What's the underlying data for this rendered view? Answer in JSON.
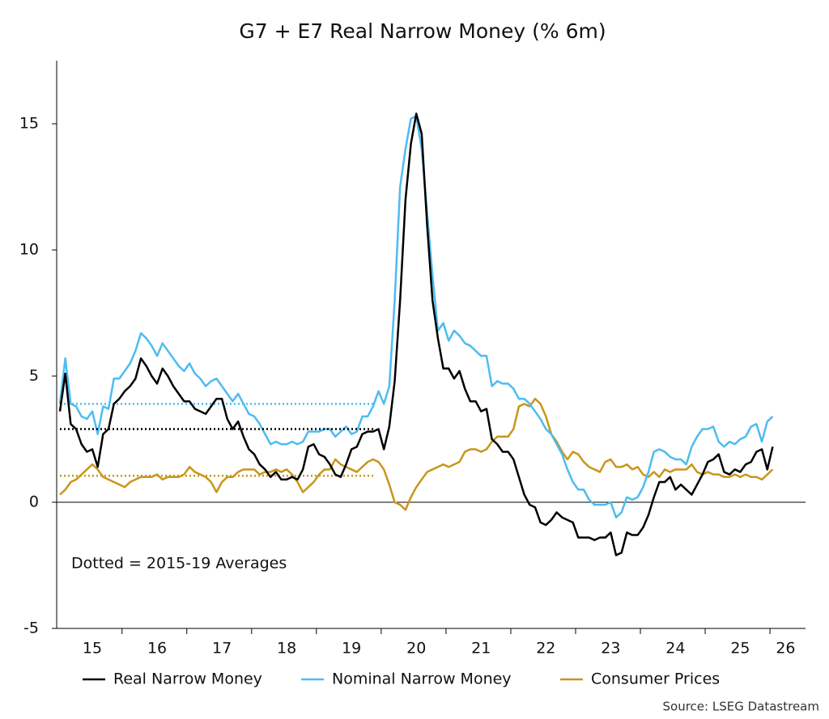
{
  "chart_data": {
    "type": "line",
    "title": "G7 + E7 Real Narrow Money (% 6m)",
    "annotation": "Dotted = 2015-19 Averages",
    "source": "Source: LSEG Datastream",
    "categories": [
      null,
      null,
      null,
      null,
      null,
      null,
      "15",
      null,
      null,
      null,
      null,
      null,
      null,
      null,
      null,
      null,
      null,
      null,
      "16",
      null,
      null,
      null,
      null,
      null,
      null,
      null,
      null,
      null,
      null,
      null,
      "17",
      null,
      null,
      null,
      null,
      null,
      null,
      null,
      null,
      null,
      null,
      null,
      "18",
      null,
      null,
      null,
      null,
      null,
      null,
      null,
      null,
      null,
      null,
      null,
      "19",
      null,
      null,
      null,
      null,
      null,
      null,
      null,
      null,
      null,
      null,
      null,
      "20",
      null,
      null,
      null,
      null,
      null,
      null,
      null,
      null,
      null,
      null,
      null,
      "21",
      null,
      null,
      null,
      null,
      null,
      null,
      null,
      null,
      null,
      null,
      null,
      "22",
      null,
      null,
      null,
      null,
      null,
      null,
      null,
      null,
      null,
      null,
      null,
      "23",
      null,
      null,
      null,
      null,
      null,
      null,
      null,
      null,
      null,
      null,
      null,
      "24",
      null,
      null,
      null,
      null,
      null,
      null,
      null,
      null,
      null,
      null,
      null,
      "25",
      null,
      null,
      null,
      null,
      null,
      "26"
    ],
    "series": [
      {
        "name": "Real Narrow Money",
        "color": "#000000",
        "average": 2.9,
        "values": [
          3.6,
          5.1,
          3.1,
          2.9,
          2.3,
          2.0,
          2.1,
          1.4,
          2.7,
          2.9,
          3.9,
          4.1,
          4.4,
          4.6,
          4.9,
          5.7,
          5.4,
          5.0,
          4.7,
          5.3,
          5.0,
          4.6,
          4.3,
          4.0,
          4.0,
          3.7,
          3.6,
          3.5,
          3.8,
          4.1,
          4.1,
          3.3,
          2.9,
          3.2,
          2.6,
          2.1,
          1.9,
          1.5,
          1.3,
          1.0,
          1.2,
          0.9,
          0.9,
          1.0,
          0.9,
          1.3,
          2.2,
          2.3,
          1.9,
          1.8,
          1.5,
          1.1,
          1.0,
          1.5,
          2.1,
          2.2,
          2.7,
          2.8,
          2.8,
          2.9,
          2.1,
          3.0,
          4.8,
          8.0,
          12.0,
          14.2,
          15.4,
          14.6,
          11.0,
          8.0,
          6.5,
          5.3,
          5.3,
          4.9,
          5.2,
          4.5,
          4.0,
          4.0,
          3.6,
          3.7,
          2.5,
          2.3,
          2.0,
          2.0,
          1.7,
          1.0,
          0.3,
          -0.1,
          -0.2,
          -0.8,
          -0.9,
          -0.7,
          -0.4,
          -0.6,
          -0.7,
          -0.8,
          -1.4,
          -1.4,
          -1.4,
          -1.5,
          -1.4,
          -1.4,
          -1.2,
          -2.1,
          -2.0,
          -1.2,
          -1.3,
          -1.3,
          -1.0,
          -0.5,
          0.2,
          0.8,
          0.8,
          1.0,
          0.5,
          0.7,
          0.5,
          0.3,
          0.7,
          1.1,
          1.6,
          1.7,
          1.9,
          1.2,
          1.1,
          1.3,
          1.2,
          1.5,
          1.6,
          2.0,
          2.1,
          1.3,
          2.2
        ]
      },
      {
        "name": "Nominal Narrow Money",
        "color": "#4dbcef",
        "average": 3.9,
        "values": [
          3.9,
          5.7,
          3.9,
          3.8,
          3.4,
          3.3,
          3.6,
          2.7,
          3.8,
          3.7,
          4.9,
          4.9,
          5.2,
          5.5,
          6.0,
          6.7,
          6.5,
          6.2,
          5.8,
          6.3,
          6.0,
          5.7,
          5.4,
          5.2,
          5.5,
          5.1,
          4.9,
          4.6,
          4.8,
          4.9,
          4.6,
          4.3,
          4.0,
          4.3,
          3.9,
          3.5,
          3.4,
          3.1,
          2.7,
          2.3,
          2.4,
          2.3,
          2.3,
          2.4,
          2.3,
          2.4,
          2.8,
          2.8,
          2.8,
          2.9,
          2.9,
          2.6,
          2.8,
          3.0,
          2.7,
          2.8,
          3.4,
          3.4,
          3.8,
          4.4,
          3.9,
          4.6,
          8.0,
          12.5,
          14.0,
          15.2,
          15.3,
          14.0,
          11.5,
          9.0,
          6.8,
          7.1,
          6.4,
          6.8,
          6.6,
          6.3,
          6.2,
          6.0,
          5.8,
          5.8,
          4.6,
          4.8,
          4.7,
          4.7,
          4.5,
          4.1,
          4.1,
          3.9,
          3.6,
          3.3,
          2.9,
          2.7,
          2.3,
          1.9,
          1.3,
          0.8,
          0.5,
          0.5,
          0.1,
          -0.1,
          -0.1,
          -0.1,
          0.0,
          -0.6,
          -0.4,
          0.2,
          0.1,
          0.2,
          0.6,
          1.2,
          2.0,
          2.1,
          2.0,
          1.8,
          1.7,
          1.7,
          1.5,
          2.2,
          2.6,
          2.9,
          2.9,
          3.0,
          2.4,
          2.2,
          2.4,
          2.3,
          2.5,
          2.6,
          3.0,
          3.1,
          2.4,
          3.2,
          3.4
        ]
      },
      {
        "name": "Consumer Prices",
        "color": "#c9961a",
        "average": 1.05,
        "values": [
          0.3,
          0.5,
          0.8,
          0.9,
          1.1,
          1.3,
          1.5,
          1.3,
          1.0,
          0.9,
          0.8,
          0.7,
          0.6,
          0.8,
          0.9,
          1.0,
          1.0,
          1.0,
          1.1,
          0.9,
          1.0,
          1.0,
          1.0,
          1.1,
          1.4,
          1.2,
          1.1,
          1.0,
          0.8,
          0.4,
          0.8,
          1.0,
          1.0,
          1.2,
          1.3,
          1.3,
          1.3,
          1.1,
          1.2,
          1.2,
          1.3,
          1.2,
          1.3,
          1.1,
          0.8,
          0.4,
          0.6,
          0.8,
          1.1,
          1.3,
          1.3,
          1.7,
          1.5,
          1.4,
          1.3,
          1.2,
          1.4,
          1.6,
          1.7,
          1.6,
          1.3,
          0.7,
          0.0,
          -0.1,
          -0.3,
          0.2,
          0.6,
          0.9,
          1.2,
          1.3,
          1.4,
          1.5,
          1.4,
          1.5,
          1.6,
          2.0,
          2.1,
          2.1,
          2.0,
          2.1,
          2.4,
          2.6,
          2.6,
          2.6,
          2.9,
          3.8,
          3.9,
          3.8,
          4.1,
          3.9,
          3.4,
          2.7,
          2.4,
          2.0,
          1.7,
          2.0,
          1.9,
          1.6,
          1.4,
          1.3,
          1.2,
          1.6,
          1.7,
          1.4,
          1.4,
          1.5,
          1.3,
          1.4,
          1.1,
          1.0,
          1.2,
          1.0,
          1.3,
          1.2,
          1.3,
          1.3,
          1.3,
          1.5,
          1.2,
          1.1,
          1.2,
          1.1,
          1.1,
          1.0,
          1.0,
          1.1,
          1.0,
          1.1,
          1.0,
          1.0,
          0.9,
          1.1,
          1.3
        ]
      }
    ],
    "ylim": [
      -5,
      17.5
    ],
    "yticks": [
      -5,
      0,
      5,
      10,
      15
    ],
    "zero_line": true
  }
}
